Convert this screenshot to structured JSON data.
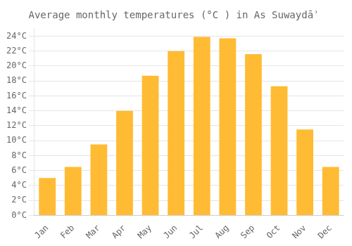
{
  "chart_data": {
    "type": "bar",
    "title": "Average monthly temperatures (°C ) in As Suwaydāʾ",
    "categories": [
      "Jan",
      "Feb",
      "Mar",
      "Apr",
      "May",
      "Jun",
      "Jul",
      "Aug",
      "Sep",
      "Oct",
      "Nov",
      "Dec"
    ],
    "values": [
      5.0,
      6.5,
      9.5,
      14.0,
      18.7,
      22.0,
      23.9,
      23.7,
      21.6,
      17.3,
      11.5,
      6.5
    ],
    "color": "#FFBB33",
    "ylim": [
      0,
      25
    ],
    "yticks": [
      {
        "value": 0,
        "label": "0°C"
      },
      {
        "value": 2,
        "label": "2°C"
      },
      {
        "value": 4,
        "label": "4°C"
      },
      {
        "value": 6,
        "label": "6°C"
      },
      {
        "value": 8,
        "label": "8°C"
      },
      {
        "value": 10,
        "label": "10°C"
      },
      {
        "value": 12,
        "label": "12°C"
      },
      {
        "value": 14,
        "label": "14°C"
      },
      {
        "value": 16,
        "label": "16°C"
      },
      {
        "value": 18,
        "label": "18°C"
      },
      {
        "value": 20,
        "label": "20°C"
      },
      {
        "value": 22,
        "label": "22°C"
      },
      {
        "value": 24,
        "label": "24°C"
      }
    ],
    "grid": true
  }
}
